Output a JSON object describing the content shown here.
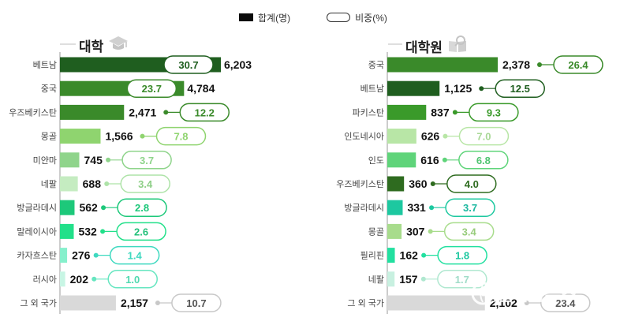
{
  "legend": {
    "total_label": "합계(명)",
    "share_label": "비중(%)"
  },
  "watermark": "㈜한국탑뉴스",
  "icons": {
    "left": "graduation-cap-icon",
    "right": "book-search-icon"
  },
  "chart_data": [
    {
      "type": "bar",
      "title": "대학",
      "categories": [
        "베트남",
        "중국",
        "우즈베키스탄",
        "몽골",
        "미얀마",
        "네팔",
        "방글라데시",
        "말레이시아",
        "카자흐스탄",
        "러시아",
        "그 외 국가"
      ],
      "series": [
        {
          "values": [
            6203,
            4784,
            2471,
            1566,
            745,
            688,
            562,
            532,
            276,
            202,
            2157
          ]
        },
        {
          "values": [
            30.7,
            23.7,
            12.2,
            7.8,
            3.7,
            3.4,
            2.8,
            2.6,
            1.4,
            1.0,
            10.7
          ]
        }
      ],
      "value_labels": [
        "6,203",
        "4,784",
        "2,471",
        "1,566",
        "745",
        "688",
        "562",
        "532",
        "276",
        "202",
        "2,157"
      ],
      "share_labels": [
        "30.7",
        "23.7",
        "12.2",
        "7.8",
        "3.7",
        "3.4",
        "2.8",
        "2.6",
        "1.4",
        "1.0",
        "10.7"
      ],
      "colors": [
        "#1f5e1f",
        "#3a8a2a",
        "#3a8a2a",
        "#8fd46f",
        "#8fd48b",
        "#c5ecc1",
        "#1dc87a",
        "#22e08a",
        "#86f0cc",
        "#c8f5e4",
        "#d9d9d9"
      ],
      "circle_colors": [
        "#1f5e1f",
        "#3a8a2a",
        "#3a8a2a",
        "#8fd46f",
        "#8fd48b",
        "#aee3a8",
        "#1dc87a",
        "#22e08a",
        "#3fd9c0",
        "#66e6c0",
        "#c8c8c8"
      ],
      "text_colors": [
        "#1f5e1f",
        "#3a8a2a",
        "#3a8a2a",
        "#8fd46f",
        "#8fd48b",
        "#8fcf88",
        "#1dc87a",
        "#22c07a",
        "#3fd9c0",
        "#4fd9b0",
        "#555555"
      ],
      "legend_position": "top"
    },
    {
      "type": "bar",
      "title": "대학원",
      "categories": [
        "중국",
        "베트남",
        "파키스탄",
        "인도네시아",
        "인도",
        "우즈베키스탄",
        "방글라데시",
        "몽골",
        "필리핀",
        "네팔",
        "그 외 국가"
      ],
      "series": [
        {
          "values": [
            2378,
            1125,
            837,
            626,
            616,
            360,
            331,
            307,
            162,
            157,
            2102
          ]
        },
        {
          "values": [
            26.4,
            12.5,
            9.3,
            7.0,
            6.8,
            4.0,
            3.7,
            3.4,
            1.8,
            1.7,
            23.4
          ]
        }
      ],
      "value_labels": [
        "2,378",
        "1,125",
        "837",
        "626",
        "616",
        "360",
        "331",
        "307",
        "162",
        "157",
        "2,102"
      ],
      "share_labels": [
        "26.4",
        "12.5",
        "9.3",
        "7.0",
        "6.8",
        "4.0",
        "3.7",
        "3.4",
        "1.8",
        "1.7",
        "23.4"
      ],
      "colors": [
        "#3a8a2a",
        "#1f5e1f",
        "#3a9a2a",
        "#b8e6a6",
        "#5fd47a",
        "#2e6b1f",
        "#1dc8a0",
        "#a8dc8c",
        "#22e0a0",
        "#c8f0e0",
        "#d9d9d9"
      ],
      "circle_colors": [
        "#3a8a2a",
        "#1f5e1f",
        "#3a9a2a",
        "#b8e6a6",
        "#5fd47a",
        "#2e6b1f",
        "#1dc8a0",
        "#a8dc8c",
        "#22e0a0",
        "#b0e8d0",
        "#c8c8c8"
      ],
      "text_colors": [
        "#3a8a2a",
        "#1f5e1f",
        "#3a9a2a",
        "#a8d896",
        "#4fc470",
        "#2e6b1f",
        "#1db8a0",
        "#98cc7c",
        "#1dc8a0",
        "#a0dcc8",
        "#555555"
      ],
      "legend_position": "top"
    }
  ]
}
